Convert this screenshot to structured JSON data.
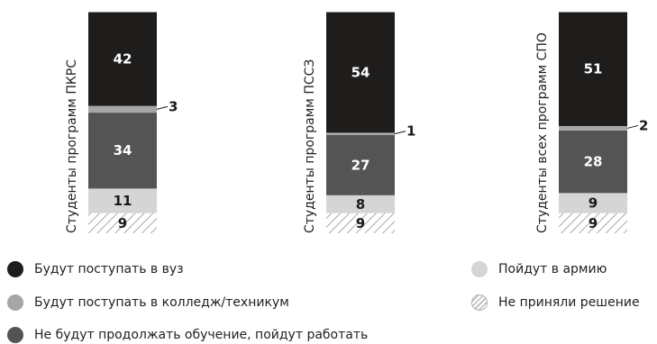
{
  "chart_data": {
    "type": "bar",
    "stacked": true,
    "orientation": "vertical",
    "categories": [
      "Студенты программ ПКРС",
      "Студенты программ ПССЗ",
      "Студенты всех программ СПО"
    ],
    "series": [
      {
        "name": "Не приняли решение",
        "values": [
          9,
          9,
          9
        ],
        "color": "#ffffff",
        "pattern": "hatch"
      },
      {
        "name": "Пойдут в армию",
        "values": [
          11,
          8,
          9
        ],
        "color": "#d5d5d5"
      },
      {
        "name": "Не будут продолжать обучение, пойдут работать",
        "values": [
          34,
          27,
          28
        ],
        "color": "#545454"
      },
      {
        "name": "Будут поступать в колледж/техникум",
        "values": [
          3,
          1,
          2
        ],
        "color": "#a6a6a6"
      },
      {
        "name": "Будут поступать в вуз",
        "values": [
          42,
          54,
          51
        ],
        "color": "#1f1c1c"
      }
    ],
    "data_labels": true,
    "legend_position": "bottom"
  },
  "legend": {
    "items": [
      {
        "label": "Будут поступать в вуз",
        "color": "#1f1c1c"
      },
      {
        "label": "Будут поступать в колледж/техникум",
        "color": "#a6a6a6"
      },
      {
        "label": "Не будут продолжать обучение, пойдут работать",
        "color": "#545454"
      },
      {
        "label": "Пойдут в армию",
        "color": "#d5d5d5"
      },
      {
        "label": "Не приняли решение",
        "color": "hatch"
      }
    ]
  }
}
